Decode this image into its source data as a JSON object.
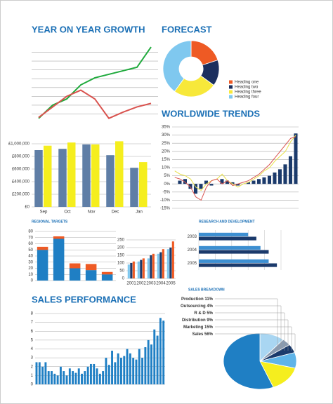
{
  "chart_data": [
    {
      "type": "line",
      "title": "YEAR ON YEAR GROWTH",
      "ylim": [
        0,
        9
      ],
      "yticks": [
        1,
        2,
        3,
        4,
        5,
        6,
        7,
        8
      ],
      "tick_labels": false,
      "grid": true,
      "series": [
        {
          "name": null,
          "color": "#1faa3c",
          "values": [
            0.5,
            2,
            2.7,
            4.3,
            5.1,
            5.5,
            5.9,
            6.3,
            8.6
          ]
        },
        {
          "name": null,
          "color": "#d9534f",
          "values": [
            0.6,
            1.8,
            3,
            3.7,
            2.7,
            0.5,
            1.2,
            1.8,
            2.2
          ]
        }
      ]
    },
    {
      "type": "pie",
      "title": "FORECAST",
      "donut": true,
      "categories": [
        "Heading one",
        "Heading two",
        "Heading three",
        "Heading four"
      ],
      "values": [
        20,
        15,
        25,
        40
      ],
      "colors": [
        "#ee5a24",
        "#1b2f5e",
        "#f7e83a",
        "#7fc8ef"
      ]
    },
    {
      "type": "bar",
      "categories": [
        "Sep",
        "Oct",
        "Nov",
        "Dec",
        "Jan"
      ],
      "ylim": [
        0,
        1000000
      ],
      "yticks": [
        {
          "value": 0,
          "label": "£0"
        },
        {
          "value": 200000,
          "label": "£200,000"
        },
        {
          "value": 400000,
          "label": "£400,000"
        },
        {
          "value": 600000,
          "label": "£600,000"
        },
        {
          "value": 800000,
          "label": "£800,000"
        },
        {
          "value": 1000000,
          "label": "£1,000,000"
        }
      ],
      "grid": true,
      "series": [
        {
          "name": null,
          "color": "#5f7ea6",
          "values": [
            900000,
            920000,
            990000,
            820000,
            620000
          ]
        },
        {
          "name": null,
          "color": "#f5ee1e",
          "values": [
            970000,
            1020000,
            990000,
            1040000,
            710000
          ]
        }
      ]
    },
    {
      "type": "bar",
      "title": "WORLDWIDE TRENDS",
      "ylim": [
        -15,
        35
      ],
      "yticks": [
        {
          "value": -15,
          "label": "-15%"
        },
        {
          "value": -10,
          "label": "-10%"
        },
        {
          "value": -5,
          "label": "-5%"
        },
        {
          "value": 0,
          "label": "0%"
        },
        {
          "value": 5,
          "label": "5%"
        },
        {
          "value": 10,
          "label": "10%"
        },
        {
          "value": 15,
          "label": "15%"
        },
        {
          "value": 20,
          "label": "20%"
        },
        {
          "value": 25,
          "label": "25%"
        },
        {
          "value": 30,
          "label": "30%"
        },
        {
          "value": 35,
          "label": "35%"
        }
      ],
      "grid": true,
      "series": [
        {
          "name": null,
          "color": "#1b3a6b",
          "values": [
            0,
            2,
            3,
            -3,
            -6,
            -3,
            2,
            -1,
            0,
            3,
            2,
            1,
            -1,
            0,
            1,
            2,
            3,
            4,
            5,
            7,
            9,
            12,
            17,
            31
          ]
        },
        {
          "name": null,
          "type": "line",
          "color": "#e8e04a",
          "values": [
            8,
            6,
            5,
            3,
            -2,
            -4,
            0,
            2,
            3,
            6,
            2,
            0,
            -2,
            0,
            1,
            3,
            5,
            8,
            10,
            14,
            17,
            20,
            26,
            30
          ]
        },
        {
          "name": null,
          "type": "line",
          "color": "#d9534f",
          "values": [
            4,
            3,
            1,
            -2,
            -8,
            -10,
            -2,
            2,
            3,
            0,
            2,
            -1,
            0,
            1,
            2,
            4,
            6,
            9,
            12,
            16,
            20,
            24,
            28,
            29
          ]
        }
      ]
    },
    {
      "type": "bar",
      "stacked": true,
      "title": "REGIONAL TARGETS",
      "ylim": [
        0,
        80
      ],
      "yticks": [
        0,
        10,
        20,
        30,
        40,
        50,
        60,
        70,
        80
      ],
      "grid": true,
      "series": [
        {
          "name": null,
          "color": "#1f7fc4",
          "values": [
            50,
            68,
            20,
            17,
            10
          ]
        },
        {
          "name": null,
          "color": "#ee5a24",
          "values": [
            5,
            4,
            8,
            10,
            4
          ]
        }
      ]
    },
    {
      "type": "bar",
      "categories": [
        "2001",
        "2002",
        "2003",
        "2004",
        "2005"
      ],
      "ylim": [
        0,
        250
      ],
      "yticks": [
        0,
        50,
        100,
        150,
        200,
        250
      ],
      "grid": true,
      "series": [
        {
          "name": null,
          "color": "#7fc8ef",
          "values": [
            90,
            110,
            130,
            160,
            190
          ]
        },
        {
          "name": null,
          "color": "#1b3a6b",
          "values": [
            100,
            120,
            150,
            170,
            200
          ]
        },
        {
          "name": null,
          "color": "#ee5a24",
          "values": [
            110,
            130,
            160,
            190,
            240
          ]
        }
      ]
    },
    {
      "type": "bar",
      "orientation": "horizontal",
      "title": "RESEARCH AND DEVELOPMENT",
      "categories": [
        "2003",
        "2004",
        "2005"
      ],
      "xlim": [
        0,
        100
      ],
      "xticks": [
        0,
        20,
        40,
        60,
        80,
        100
      ],
      "tick_labels": false,
      "grid": true,
      "series": [
        {
          "name": null,
          "color": "#3d8fd1",
          "values": [
            60,
            75,
            85
          ]
        },
        {
          "name": null,
          "color": "#1b3a6b",
          "values": [
            70,
            85,
            95
          ]
        }
      ]
    },
    {
      "type": "bar",
      "title": "SALES PERFORMANCE",
      "ylim": [
        0,
        8
      ],
      "yticks": [
        0,
        1,
        2,
        3,
        4,
        5,
        6,
        7,
        8
      ],
      "grid": true,
      "series": [
        {
          "name": null,
          "color": "#1f7fc4",
          "values": [
            2.5,
            2.5,
            2,
            2.5,
            1.5,
            1.5,
            1.2,
            1,
            2,
            1.5,
            1,
            1.8,
            1.5,
            1.3,
            1.8,
            1.2,
            1.5,
            2,
            2.3,
            2.3,
            1.8,
            1.2,
            1.5,
            3,
            2.2,
            3.8,
            2.5,
            3.5,
            3,
            3.2,
            4,
            3.5,
            3,
            2.8,
            4,
            3,
            4.2,
            5,
            4.5,
            6.2,
            5.5,
            7.5,
            7.2
          ]
        }
      ]
    },
    {
      "type": "pie",
      "title": "SALES BREAKDOWN",
      "categories": [
        "Production",
        "Outsourcing",
        "R & D",
        "Distribution",
        "Marketing",
        "Sales"
      ],
      "values": [
        11,
        4,
        5,
        9,
        15,
        56
      ],
      "value_labels": [
        "11%",
        "4%",
        "5%",
        "9%",
        "15%",
        "56%"
      ],
      "colors": [
        "#a9d6f2",
        "#8a9bb0",
        "#1b3a6b",
        "#5fb4e8",
        "#f5ee1e",
        "#1f7fc4"
      ]
    }
  ]
}
